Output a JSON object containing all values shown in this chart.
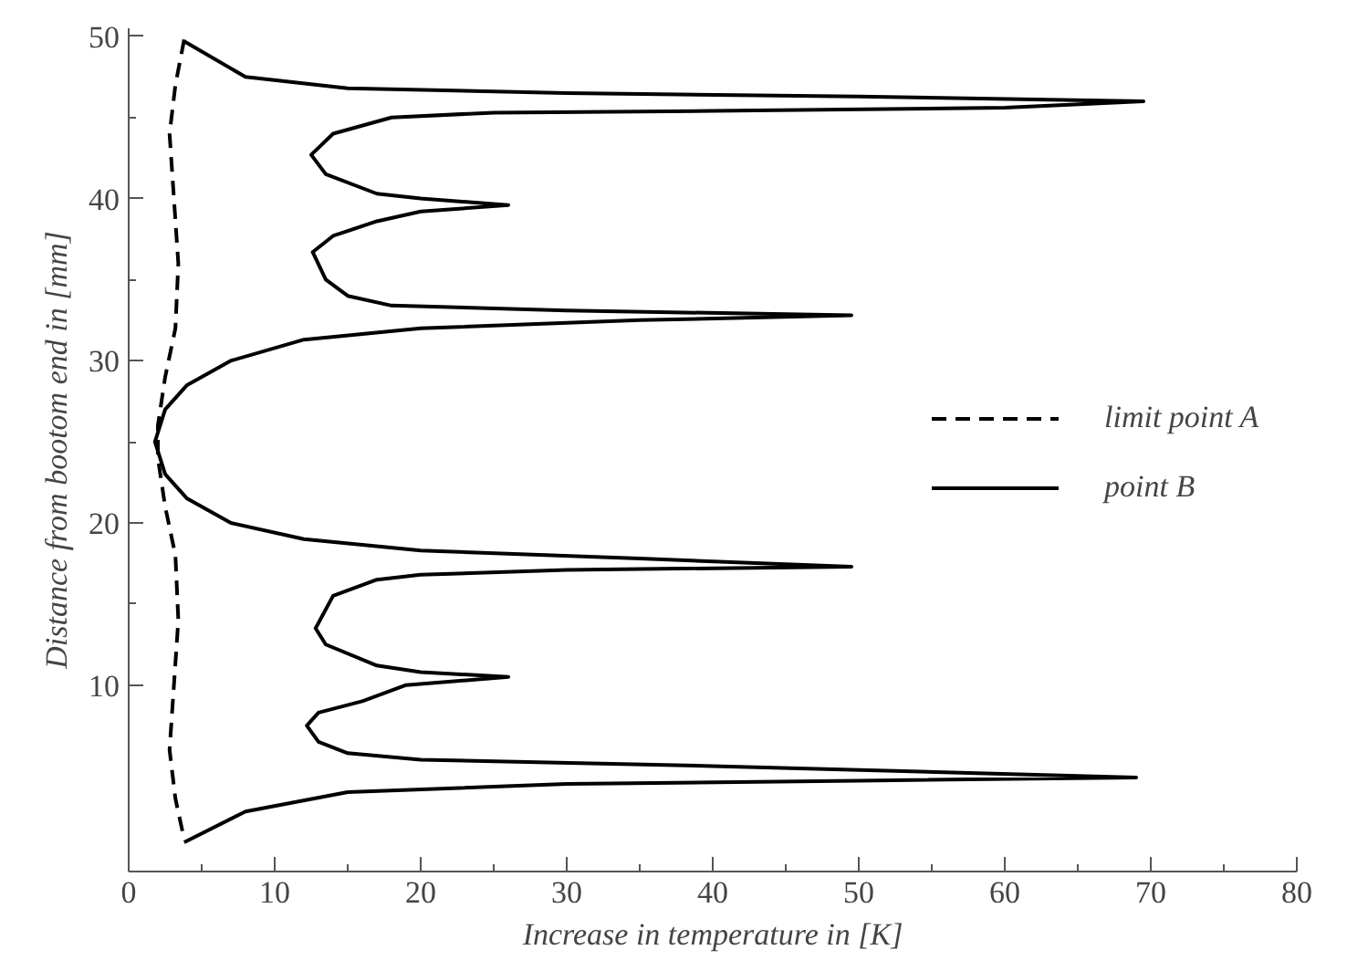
{
  "chart_data": {
    "type": "line",
    "xlabel": "Increase in temperature in [K]",
    "ylabel": "Distance from bootom end in [mm]",
    "xlim": [
      0,
      80
    ],
    "xticks": [
      0,
      10,
      20,
      30,
      40,
      50,
      60,
      70,
      80
    ],
    "ylim": [
      -1.5,
      50.5
    ],
    "yticks": [
      10,
      20,
      30,
      40,
      50
    ],
    "grid": false,
    "legend": "right",
    "marker": "none",
    "series": [
      {
        "name": "limit point A",
        "color": "#000000",
        "line_style": "dashed",
        "x": [
          3.8,
          3.2,
          2.8,
          3.1,
          3.4,
          3.2,
          2.5,
          2.0,
          2.0,
          2.5,
          3.2,
          3.4,
          3.1,
          2.8,
          3.2,
          3.8
        ],
        "values": [
          49.8,
          47,
          44,
          40,
          36,
          32,
          29,
          26,
          24,
          21,
          18,
          14,
          10,
          6,
          3,
          0.5
        ]
      },
      {
        "name": "point B",
        "color": "#000000",
        "line_style": "solid",
        "x": [
          3.8,
          8,
          15,
          30,
          50,
          69.5,
          60,
          40,
          25,
          18,
          14,
          12.5,
          13.5,
          17,
          20,
          26,
          20,
          17,
          14,
          12.6,
          13.5,
          15,
          18,
          30,
          49.5,
          35,
          20,
          12,
          7,
          4,
          2.5,
          1.8,
          2.5,
          4,
          7,
          12,
          20,
          35,
          49.5,
          30,
          20,
          17,
          14,
          12.8,
          13.5,
          17,
          20,
          26,
          19,
          16,
          13,
          12.2,
          13,
          15,
          20,
          40,
          69,
          50,
          30,
          15,
          8,
          3.8
        ],
        "values": [
          49.7,
          47.5,
          46.8,
          46.5,
          46.3,
          46.0,
          45.6,
          45.4,
          45.3,
          45,
          44,
          42.7,
          41.5,
          40.3,
          40,
          39.6,
          39.2,
          38.6,
          37.7,
          36.7,
          35,
          34,
          33.4,
          33.1,
          32.8,
          32.5,
          32.0,
          31.3,
          30,
          28.5,
          27,
          25,
          23,
          21.5,
          20,
          19,
          18.3,
          17.8,
          17.3,
          17.1,
          16.8,
          16.5,
          15.5,
          13.5,
          12.5,
          11.2,
          10.8,
          10.5,
          10,
          9,
          8.3,
          7.5,
          6.5,
          5.8,
          5.4,
          5,
          4.3,
          4.1,
          3.9,
          3.4,
          2.2,
          0.3
        ]
      }
    ]
  }
}
